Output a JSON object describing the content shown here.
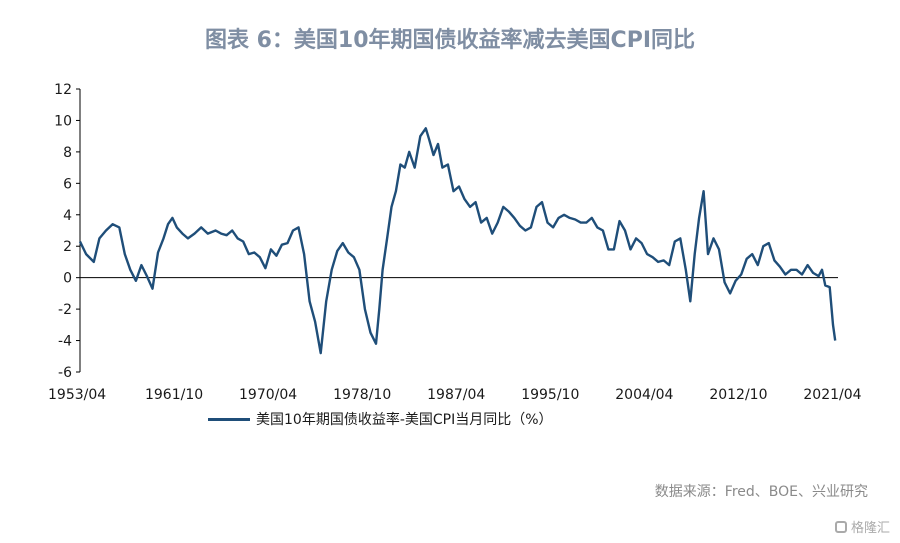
{
  "chart_data": {
    "type": "line",
    "title": "图表 6：美国10年期国债收益率减去美国CPI同比",
    "ylim": [
      -6,
      12
    ],
    "yticks": [
      "12",
      "10",
      "8",
      "6",
      "4",
      "2",
      "0",
      "-2",
      "-4",
      "-6"
    ],
    "xticks": [
      "1953/04",
      "1961/10",
      "1970/04",
      "1978/10",
      "1987/04",
      "1995/10",
      "2004/04",
      "2012/10",
      "2021/04"
    ],
    "grid": false,
    "legend_position": "bottom",
    "line_color": "#1f4e79",
    "series": [
      {
        "name": "美国10年期国债收益率-美国CPI当月同比（%）",
        "points": [
          [
            1953.25,
            2.3
          ],
          [
            1953.8,
            1.5
          ],
          [
            1954.5,
            1.0
          ],
          [
            1955.0,
            2.5
          ],
          [
            1955.6,
            3.0
          ],
          [
            1956.2,
            3.4
          ],
          [
            1956.8,
            3.2
          ],
          [
            1957.3,
            1.5
          ],
          [
            1957.8,
            0.5
          ],
          [
            1958.3,
            -0.2
          ],
          [
            1958.8,
            0.8
          ],
          [
            1959.3,
            0.1
          ],
          [
            1959.8,
            -0.7
          ],
          [
            1960.3,
            1.6
          ],
          [
            1960.8,
            2.5
          ],
          [
            1961.2,
            3.4
          ],
          [
            1961.6,
            3.8
          ],
          [
            1962.0,
            3.2
          ],
          [
            1962.5,
            2.8
          ],
          [
            1963.0,
            2.5
          ],
          [
            1963.6,
            2.8
          ],
          [
            1964.2,
            3.2
          ],
          [
            1964.8,
            2.8
          ],
          [
            1965.5,
            3.0
          ],
          [
            1966.0,
            2.8
          ],
          [
            1966.5,
            2.7
          ],
          [
            1967.0,
            3.0
          ],
          [
            1967.5,
            2.5
          ],
          [
            1968.0,
            2.3
          ],
          [
            1968.5,
            1.5
          ],
          [
            1969.0,
            1.6
          ],
          [
            1969.5,
            1.3
          ],
          [
            1970.0,
            0.6
          ],
          [
            1970.5,
            1.8
          ],
          [
            1971.0,
            1.4
          ],
          [
            1971.5,
            2.1
          ],
          [
            1972.0,
            2.2
          ],
          [
            1972.5,
            3.0
          ],
          [
            1973.0,
            3.2
          ],
          [
            1973.5,
            1.5
          ],
          [
            1974.0,
            -1.5
          ],
          [
            1974.5,
            -2.8
          ],
          [
            1975.0,
            -4.8
          ],
          [
            1975.5,
            -1.5
          ],
          [
            1976.0,
            0.5
          ],
          [
            1976.5,
            1.7
          ],
          [
            1977.0,
            2.2
          ],
          [
            1977.5,
            1.6
          ],
          [
            1978.0,
            1.3
          ],
          [
            1978.5,
            0.5
          ],
          [
            1979.0,
            -2.0
          ],
          [
            1979.5,
            -3.5
          ],
          [
            1980.0,
            -4.2
          ],
          [
            1980.3,
            -2.0
          ],
          [
            1980.6,
            0.5
          ],
          [
            1981.0,
            2.5
          ],
          [
            1981.4,
            4.5
          ],
          [
            1981.8,
            5.5
          ],
          [
            1982.2,
            7.2
          ],
          [
            1982.6,
            7.0
          ],
          [
            1983.0,
            8.0
          ],
          [
            1983.5,
            7.0
          ],
          [
            1984.0,
            9.0
          ],
          [
            1984.5,
            9.5
          ],
          [
            1984.8,
            8.8
          ],
          [
            1985.2,
            7.8
          ],
          [
            1985.6,
            8.5
          ],
          [
            1986.0,
            7.0
          ],
          [
            1986.5,
            7.2
          ],
          [
            1987.0,
            5.5
          ],
          [
            1987.5,
            5.8
          ],
          [
            1988.0,
            5.0
          ],
          [
            1988.5,
            4.5
          ],
          [
            1989.0,
            4.8
          ],
          [
            1989.5,
            3.5
          ],
          [
            1990.0,
            3.8
          ],
          [
            1990.5,
            2.8
          ],
          [
            1991.0,
            3.5
          ],
          [
            1991.5,
            4.5
          ],
          [
            1992.0,
            4.2
          ],
          [
            1992.5,
            3.8
          ],
          [
            1993.0,
            3.3
          ],
          [
            1993.5,
            3.0
          ],
          [
            1994.0,
            3.2
          ],
          [
            1994.5,
            4.5
          ],
          [
            1995.0,
            4.8
          ],
          [
            1995.5,
            3.5
          ],
          [
            1996.0,
            3.2
          ],
          [
            1996.5,
            3.8
          ],
          [
            1997.0,
            4.0
          ],
          [
            1997.5,
            3.8
          ],
          [
            1998.0,
            3.7
          ],
          [
            1998.5,
            3.5
          ],
          [
            1999.0,
            3.5
          ],
          [
            1999.5,
            3.8
          ],
          [
            2000.0,
            3.2
          ],
          [
            2000.5,
            3.0
          ],
          [
            2001.0,
            1.8
          ],
          [
            2001.5,
            1.8
          ],
          [
            2002.0,
            3.6
          ],
          [
            2002.5,
            3.0
          ],
          [
            2003.0,
            1.8
          ],
          [
            2003.5,
            2.5
          ],
          [
            2004.0,
            2.2
          ],
          [
            2004.5,
            1.5
          ],
          [
            2005.0,
            1.3
          ],
          [
            2005.5,
            1.0
          ],
          [
            2006.0,
            1.1
          ],
          [
            2006.5,
            0.8
          ],
          [
            2007.0,
            2.3
          ],
          [
            2007.5,
            2.5
          ],
          [
            2008.0,
            0.5
          ],
          [
            2008.4,
            -1.5
          ],
          [
            2008.8,
            1.5
          ],
          [
            2009.2,
            3.8
          ],
          [
            2009.6,
            5.5
          ],
          [
            2010.0,
            1.5
          ],
          [
            2010.5,
            2.5
          ],
          [
            2011.0,
            1.8
          ],
          [
            2011.5,
            -0.3
          ],
          [
            2012.0,
            -1.0
          ],
          [
            2012.5,
            -0.2
          ],
          [
            2013.0,
            0.2
          ],
          [
            2013.5,
            1.2
          ],
          [
            2014.0,
            1.5
          ],
          [
            2014.5,
            0.8
          ],
          [
            2015.0,
            2.0
          ],
          [
            2015.5,
            2.2
          ],
          [
            2016.0,
            1.1
          ],
          [
            2016.5,
            0.7
          ],
          [
            2017.0,
            0.2
          ],
          [
            2017.5,
            0.5
          ],
          [
            2018.0,
            0.5
          ],
          [
            2018.5,
            0.2
          ],
          [
            2019.0,
            0.8
          ],
          [
            2019.5,
            0.3
          ],
          [
            2020.0,
            0.1
          ],
          [
            2020.3,
            0.5
          ],
          [
            2020.6,
            -0.5
          ],
          [
            2021.0,
            -0.6
          ],
          [
            2021.3,
            -3.0
          ],
          [
            2021.5,
            -4.0
          ]
        ]
      }
    ]
  },
  "source": "数据来源：Fred、BOE、兴业研究",
  "watermark": "格隆汇"
}
